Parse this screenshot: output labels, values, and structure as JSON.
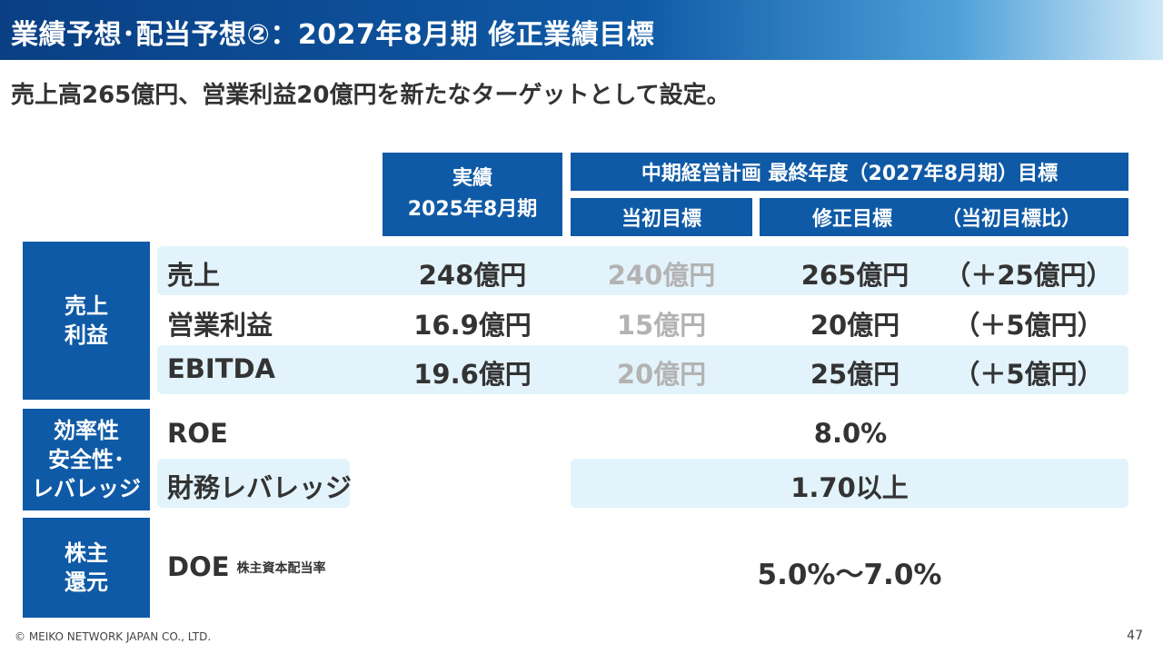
{
  "title": "業績予想･配当予想②：2027年8月期 修正業績目標",
  "subtitle": "売上高265億円、営業利益20億円を新たなターゲットとして設定。",
  "headers": {
    "actual_line1": "実績",
    "actual_line2": "2025年8月期",
    "mid_term": "中期経営計画 最終年度（2027年8月期）目標",
    "initial_target": "当初目標",
    "revised_target": "修正目標",
    "vs_initial": "（当初目標比）"
  },
  "categories": {
    "profit_line1": "売上",
    "profit_line2": "利益",
    "eff_line1": "効率性",
    "eff_line2": "安全性･",
    "eff_line3": "レバレッジ",
    "share_line1": "株主",
    "share_line2": "還元"
  },
  "rows": {
    "sales": {
      "label": "売上",
      "actual": "248億円",
      "initial": "240億円",
      "revised": "265億円",
      "diff": "（＋25億円）"
    },
    "op_income": {
      "label": "営業利益",
      "actual": "16.9億円",
      "initial": "15億円",
      "revised": "20億円",
      "diff": "（＋5億円）"
    },
    "ebitda": {
      "label": "EBITDA",
      "actual": "19.6億円",
      "initial": "20億円",
      "revised": "25億円",
      "diff": "（＋5億円）"
    },
    "roe": {
      "label": "ROE",
      "target": "8.0%"
    },
    "leverage": {
      "label": "財務レバレッジ",
      "target": "1.70以上"
    },
    "doe": {
      "label": "DOE",
      "note": "株主資本配当率",
      "target": "5.0%～7.0%"
    }
  },
  "footer": {
    "copyright": "© MEIKO NETWORK JAPAN CO., LTD.",
    "page_number": "47"
  },
  "colors": {
    "header_blue": "#0f5aa6",
    "band_light_blue": "#e3f3fb",
    "muted_gray": "#b3b3b3"
  }
}
